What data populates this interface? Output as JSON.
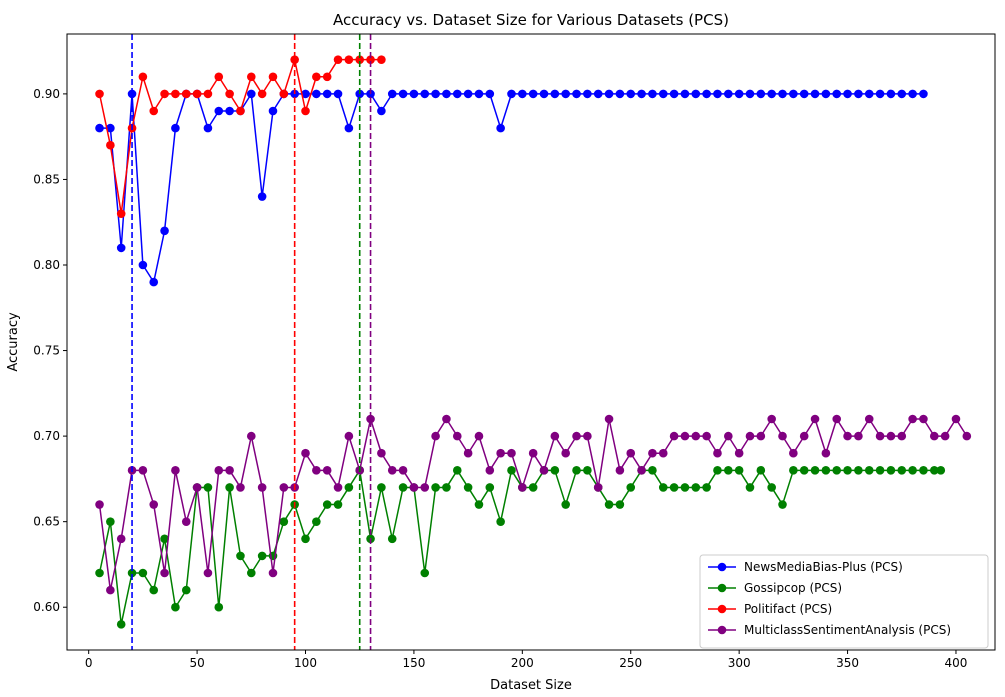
{
  "chart_data": {
    "type": "line",
    "title": "Accuracy vs. Dataset Size for Various Datasets (PCS)",
    "xlabel": "Dataset Size",
    "ylabel": "Accuracy",
    "xlim": [
      -10,
      418
    ],
    "ylim": [
      0.575,
      0.935
    ],
    "xticks": [
      0,
      50,
      100,
      150,
      200,
      250,
      300,
      350,
      400
    ],
    "yticks": [
      0.6,
      0.65,
      0.7,
      0.75,
      0.8,
      0.85,
      0.9
    ],
    "grid": false,
    "legend_position": "lower-right",
    "series": [
      {
        "name": "NewsMediaBias-Plus (PCS)",
        "color": "#0000ff",
        "x": [
          5,
          10,
          15,
          20,
          25,
          30,
          35,
          40,
          45,
          50,
          55,
          60,
          65,
          70,
          75,
          80,
          85,
          90,
          95,
          100,
          105,
          110,
          115,
          120,
          125,
          130,
          135,
          140,
          145,
          150,
          155,
          160,
          165,
          170,
          175,
          180,
          185,
          190,
          195,
          200,
          205,
          210,
          215,
          220,
          225,
          230,
          235,
          240,
          245,
          250,
          255,
          260,
          265,
          270,
          275,
          280,
          285,
          290,
          295,
          300,
          305,
          310,
          315,
          320,
          325,
          330,
          335,
          340,
          345,
          350,
          355,
          360,
          365,
          370,
          375,
          380,
          385
        ],
        "values": [
          0.88,
          0.88,
          0.81,
          0.9,
          0.8,
          0.79,
          0.82,
          0.88,
          0.9,
          0.9,
          0.88,
          0.89,
          0.89,
          0.89,
          0.9,
          0.84,
          0.89,
          0.9,
          0.9,
          0.9,
          0.9,
          0.9,
          0.9,
          0.88,
          0.9,
          0.9,
          0.89,
          0.9,
          0.9,
          0.9,
          0.9,
          0.9,
          0.9,
          0.9,
          0.9,
          0.9,
          0.9,
          0.88,
          0.9,
          0.9,
          0.9,
          0.9,
          0.9,
          0.9,
          0.9,
          0.9,
          0.9,
          0.9,
          0.9,
          0.9,
          0.9,
          0.9,
          0.9,
          0.9,
          0.9,
          0.9,
          0.9,
          0.9,
          0.9,
          0.9,
          0.9,
          0.9,
          0.9,
          0.9,
          0.9,
          0.9,
          0.9,
          0.9,
          0.9,
          0.9,
          0.9,
          0.9,
          0.9,
          0.9,
          0.9,
          0.9,
          0.9
        ]
      },
      {
        "name": "Gossipcop (PCS)",
        "color": "#008000",
        "x": [
          5,
          10,
          15,
          20,
          25,
          30,
          35,
          40,
          45,
          50,
          55,
          60,
          65,
          70,
          75,
          80,
          85,
          90,
          95,
          100,
          105,
          110,
          115,
          120,
          125,
          130,
          135,
          140,
          145,
          150,
          155,
          160,
          165,
          170,
          175,
          180,
          185,
          190,
          195,
          200,
          205,
          210,
          215,
          220,
          225,
          230,
          235,
          240,
          245,
          250,
          255,
          260,
          265,
          270,
          275,
          280,
          285,
          290,
          295,
          300,
          305,
          310,
          315,
          320,
          325,
          330,
          335,
          340,
          345,
          350,
          355,
          360,
          365,
          370,
          375,
          380,
          385,
          390,
          393
        ],
        "values": [
          0.62,
          0.65,
          0.59,
          0.62,
          0.62,
          0.61,
          0.64,
          0.6,
          0.61,
          0.67,
          0.67,
          0.6,
          0.67,
          0.63,
          0.62,
          0.63,
          0.63,
          0.65,
          0.66,
          0.64,
          0.65,
          0.66,
          0.66,
          0.67,
          0.68,
          0.64,
          0.67,
          0.64,
          0.67,
          0.67,
          0.62,
          0.67,
          0.67,
          0.68,
          0.67,
          0.66,
          0.67,
          0.65,
          0.68,
          0.67,
          0.67,
          0.68,
          0.68,
          0.66,
          0.68,
          0.68,
          0.67,
          0.66,
          0.66,
          0.67,
          0.68,
          0.68,
          0.67,
          0.67,
          0.67,
          0.67,
          0.67,
          0.68,
          0.68,
          0.68,
          0.67,
          0.68,
          0.67,
          0.66,
          0.68,
          0.68,
          0.68,
          0.68,
          0.68,
          0.68,
          0.68,
          0.68,
          0.68,
          0.68,
          0.68,
          0.68,
          0.68,
          0.68,
          0.68
        ]
      },
      {
        "name": "Politifact (PCS)",
        "color": "#ff0000",
        "x": [
          5,
          10,
          15,
          20,
          25,
          30,
          35,
          40,
          45,
          50,
          55,
          60,
          65,
          70,
          75,
          80,
          85,
          90,
          95,
          100,
          105,
          110,
          115,
          120,
          125,
          130,
          135
        ],
        "values": [
          0.9,
          0.87,
          0.83,
          0.88,
          0.91,
          0.89,
          0.9,
          0.9,
          0.9,
          0.9,
          0.9,
          0.91,
          0.9,
          0.89,
          0.91,
          0.9,
          0.91,
          0.9,
          0.92,
          0.89,
          0.91,
          0.91,
          0.92,
          0.92,
          0.92,
          0.92,
          0.92
        ]
      },
      {
        "name": "MulticlassSentimentAnalysis (PCS)",
        "color": "#800080",
        "x": [
          5,
          10,
          15,
          20,
          25,
          30,
          35,
          40,
          45,
          50,
          55,
          60,
          65,
          70,
          75,
          80,
          85,
          90,
          95,
          100,
          105,
          110,
          115,
          120,
          125,
          130,
          135,
          140,
          145,
          150,
          155,
          160,
          165,
          170,
          175,
          180,
          185,
          190,
          195,
          200,
          205,
          210,
          215,
          220,
          225,
          230,
          235,
          240,
          245,
          250,
          255,
          260,
          265,
          270,
          275,
          280,
          285,
          290,
          295,
          300,
          305,
          310,
          315,
          320,
          325,
          330,
          335,
          340,
          345,
          350,
          355,
          360,
          365,
          370,
          375,
          380,
          385,
          390,
          395,
          400,
          405
        ],
        "values": [
          0.66,
          0.61,
          0.64,
          0.68,
          0.68,
          0.66,
          0.62,
          0.68,
          0.65,
          0.67,
          0.62,
          0.68,
          0.68,
          0.67,
          0.7,
          0.67,
          0.62,
          0.67,
          0.67,
          0.69,
          0.68,
          0.68,
          0.67,
          0.7,
          0.68,
          0.71,
          0.69,
          0.68,
          0.68,
          0.67,
          0.67,
          0.7,
          0.71,
          0.7,
          0.69,
          0.7,
          0.68,
          0.69,
          0.69,
          0.67,
          0.69,
          0.68,
          0.7,
          0.69,
          0.7,
          0.7,
          0.67,
          0.71,
          0.68,
          0.69,
          0.68,
          0.69,
          0.69,
          0.7,
          0.7,
          0.7,
          0.7,
          0.69,
          0.7,
          0.69,
          0.7,
          0.7,
          0.71,
          0.7,
          0.69,
          0.7,
          0.71,
          0.69,
          0.71,
          0.7,
          0.7,
          0.71,
          0.7,
          0.7,
          0.7,
          0.71,
          0.71,
          0.7,
          0.7,
          0.71,
          0.7
        ]
      }
    ],
    "vlines": [
      {
        "x": 20,
        "color": "#0000ff"
      },
      {
        "x": 95,
        "color": "#ff0000"
      },
      {
        "x": 125,
        "color": "#008000"
      },
      {
        "x": 130,
        "color": "#800080"
      }
    ]
  }
}
